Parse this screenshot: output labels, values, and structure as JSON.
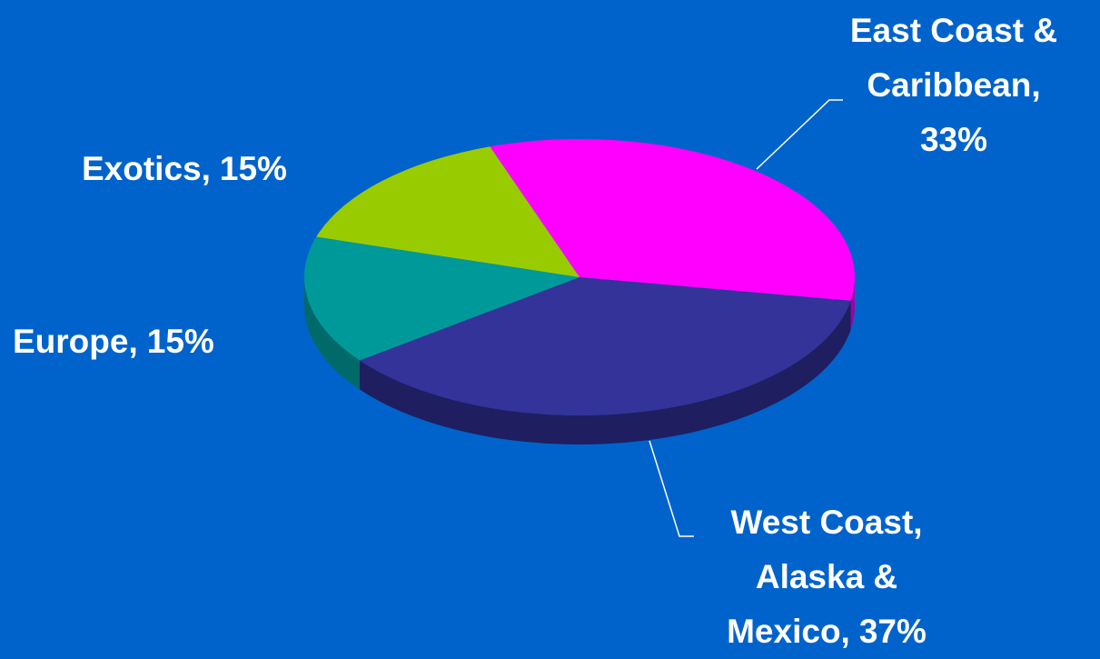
{
  "chart_data": {
    "type": "pie",
    "categories": [
      "East Coast &\nCaribbean,",
      "West Coast,\nAlaska &\nMexico,",
      "Europe,",
      "Exotics,"
    ],
    "values": [
      33,
      37,
      15,
      15
    ],
    "value_labels": [
      "33%",
      "37%",
      "15%",
      "15%"
    ],
    "colors": [
      "#ff00ff",
      "#333399",
      "#009999",
      "#99cc00"
    ],
    "side_colors": [
      "#a000a0",
      "#1e1e60",
      "#006a6a",
      "#6a8f00"
    ]
  }
}
